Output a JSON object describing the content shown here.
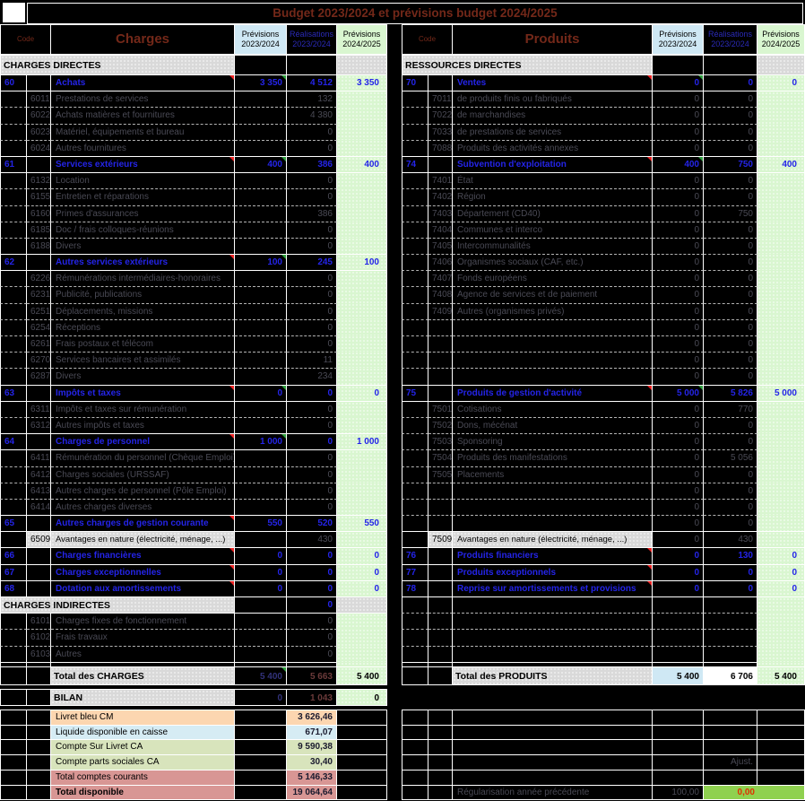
{
  "title": "Budget 2023/2024 et prévisions budget 2024/2025",
  "header": {
    "code": "Code",
    "charges": "Charges",
    "produits": "Produits",
    "prev_2324": "Prévisions\n2023/2024",
    "real_2324": "Réalisations\n2023/2024",
    "prev_2425": "Prévisions\n2024/2025"
  },
  "colors": {
    "accent_blue": "#2424e8",
    "header_red": "#732819",
    "green_col": "#d9f6d0",
    "blue_col": "#cfe8f4",
    "gray_band": "#d9d9d9",
    "verif_green": "#8fd14f",
    "verif_red": "#e03000",
    "peach": "#fcd6b0",
    "lightblue": "#d6ecf4",
    "olive": "#d8e4bc",
    "salmon": "#d89694"
  },
  "body": {
    "left": [
      {
        "t": "band",
        "l": "CHARGES DIRECTES",
        "v": [
          "",
          "",
          ""
        ]
      },
      {
        "t": "main",
        "c": "60",
        "l": "Achats",
        "v": [
          "3 350",
          "4 512",
          "3 350"
        ],
        "m": "rg"
      },
      {
        "t": "sub",
        "c": "6011",
        "l": "Prestations de services",
        "v": [
          "",
          "132"
        ]
      },
      {
        "t": "sub",
        "c": "6022",
        "l": "Achats matières et fournitures",
        "v": [
          "",
          "4 380"
        ]
      },
      {
        "t": "sub",
        "c": "6023",
        "l": "Matériel, équipements et bureau",
        "v": [
          "",
          "0"
        ]
      },
      {
        "t": "sub",
        "c": "6024",
        "l": "Autres fournitures",
        "v": [
          "",
          "0"
        ]
      },
      {
        "t": "main",
        "c": "61",
        "l": "Services extérieurs",
        "v": [
          "400",
          "386",
          "400"
        ],
        "m": "rg"
      },
      {
        "t": "sub",
        "c": "6132",
        "l": "Location",
        "v": [
          "",
          "0"
        ]
      },
      {
        "t": "sub",
        "c": "6155",
        "l": "Entretien et réparations",
        "v": [
          "",
          "0"
        ]
      },
      {
        "t": "sub",
        "c": "6160",
        "l": "Primes d'assurances",
        "v": [
          "",
          "386"
        ]
      },
      {
        "t": "sub",
        "c": "6185",
        "l": "Doc / frais colloques-réunions",
        "v": [
          "",
          "0"
        ]
      },
      {
        "t": "sub",
        "c": "6188",
        "l": "Divers",
        "v": [
          "",
          "0"
        ]
      },
      {
        "t": "main",
        "c": "62",
        "l": "Autres services extérieurs",
        "v": [
          "100",
          "245",
          "100"
        ],
        "m": "rg"
      },
      {
        "t": "sub",
        "c": "6226",
        "l": "Rémunérations intermédiaires-honoraires",
        "v": [
          "",
          "0"
        ]
      },
      {
        "t": "sub",
        "c": "6231",
        "l": "Publicité, publications",
        "v": [
          "",
          "0"
        ]
      },
      {
        "t": "sub",
        "c": "6251",
        "l": "Déplacements, missions",
        "v": [
          "",
          "0"
        ]
      },
      {
        "t": "sub",
        "c": "6254",
        "l": "Réceptions",
        "v": [
          "",
          "0"
        ]
      },
      {
        "t": "sub",
        "c": "6261",
        "l": "Frais postaux et télécom",
        "v": [
          "",
          "0"
        ]
      },
      {
        "t": "sub",
        "c": "6270",
        "l": "Services bancaires et assimilés",
        "v": [
          "",
          "11"
        ]
      },
      {
        "t": "sub",
        "c": "6287",
        "l": "Divers",
        "v": [
          "",
          "234"
        ]
      },
      {
        "t": "main",
        "c": "63",
        "l": "Impôts et taxes",
        "v": [
          "0",
          "0",
          "0"
        ],
        "m": "rg"
      },
      {
        "t": "sub",
        "c": "6311",
        "l": "Impôts et taxes sur rémunération",
        "v": [
          "",
          "0"
        ]
      },
      {
        "t": "sub",
        "c": "6312",
        "l": "Autres impôts et taxes",
        "v": [
          "",
          "0"
        ]
      },
      {
        "t": "main",
        "c": "64",
        "l": "Charges de personnel",
        "v": [
          "1 000",
          "0",
          "1 000"
        ],
        "m": "rg"
      },
      {
        "t": "sub",
        "c": "6411",
        "l": "Rémunération du personnel (Chèque Emploi)",
        "v": [
          "",
          "0"
        ]
      },
      {
        "t": "sub",
        "c": "6412",
        "l": "Charges sociales (URSSAF)",
        "v": [
          "",
          "0"
        ]
      },
      {
        "t": "sub",
        "c": "6413",
        "l": "Autres charges de personnel (Pôle Emploi)",
        "v": [
          "",
          "0"
        ]
      },
      {
        "t": "sub",
        "c": "6414",
        "l": "Autres charges diverses",
        "v": [
          "",
          "0"
        ]
      },
      {
        "t": "main",
        "c": "65",
        "l": "Autres charges de gestion courante",
        "v": [
          "550",
          "520",
          "550"
        ],
        "m": "r"
      },
      {
        "t": "gray",
        "c": "6509",
        "l": "Avantages en nature (électricité, ménage, ...)",
        "v": [
          "",
          "430"
        ]
      },
      {
        "t": "main",
        "c": "66",
        "l": "Charges financières",
        "v": [
          "0",
          "0",
          "0"
        ],
        "m": "r"
      },
      {
        "t": "main",
        "c": "67",
        "l": "Charges exceptionnelles",
        "v": [
          "0",
          "0",
          "0"
        ],
        "m": "r"
      },
      {
        "t": "main",
        "c": "68",
        "l": "Dotation aux amortissements",
        "v": [
          "0",
          "0",
          "0"
        ],
        "m": "r"
      },
      {
        "t": "band",
        "l": "CHARGES INDIRECTES",
        "v": [
          "",
          "0",
          ""
        ]
      },
      {
        "t": "sub",
        "c": "6101",
        "l": "Charges fixes de fonctionnement",
        "v": [
          "",
          "0"
        ]
      },
      {
        "t": "sub",
        "c": "6102",
        "l": "Frais travaux",
        "v": [
          "",
          "0"
        ]
      },
      {
        "t": "sub",
        "c": "6103",
        "l": "Autres",
        "v": [
          "",
          "0"
        ]
      }
    ],
    "right": [
      {
        "t": "band",
        "l": "RESSOURCES DIRECTES",
        "v": [
          "",
          "",
          ""
        ]
      },
      {
        "t": "main",
        "c": "70",
        "l": "Ventes",
        "v": [
          "0",
          "0",
          "0"
        ],
        "m": "rg"
      },
      {
        "t": "sub",
        "c": "7011",
        "l": "de produits finis ou fabriqués",
        "v": [
          "0",
          "0"
        ]
      },
      {
        "t": "sub",
        "c": "7022",
        "l": "de marchandises",
        "v": [
          "0",
          "0"
        ]
      },
      {
        "t": "sub",
        "c": "7033",
        "l": "de prestations de services",
        "v": [
          "0",
          "0"
        ]
      },
      {
        "t": "sub",
        "c": "7088",
        "l": "Produits des activités annexes",
        "v": [
          "0",
          "0"
        ]
      },
      {
        "t": "main",
        "c": "74",
        "l": "Subvention d'exploitation",
        "v": [
          "400",
          "750",
          "400"
        ],
        "m": "rg"
      },
      {
        "t": "sub",
        "c": "7401",
        "l": "État",
        "v": [
          "0",
          "0"
        ]
      },
      {
        "t": "sub",
        "c": "7402",
        "l": "Région",
        "v": [
          "0",
          "0"
        ]
      },
      {
        "t": "sub",
        "c": "7403",
        "l": "Département (CD40)",
        "v": [
          "0",
          "750"
        ]
      },
      {
        "t": "sub",
        "c": "7404",
        "l": "Communes et interco",
        "v": [
          "0",
          "0"
        ]
      },
      {
        "t": "sub",
        "c": "7405",
        "l": "Intercommunalités",
        "v": [
          "0",
          "0"
        ]
      },
      {
        "t": "sub",
        "c": "7406",
        "l": "Organismes sociaux (CAF, etc.)",
        "v": [
          "0",
          "0"
        ]
      },
      {
        "t": "sub",
        "c": "7407",
        "l": "Fonds européens",
        "v": [
          "0",
          "0"
        ]
      },
      {
        "t": "sub",
        "c": "7408",
        "l": "Agence de services et de paiement",
        "v": [
          "0",
          "0"
        ]
      },
      {
        "t": "sub",
        "c": "7409",
        "l": "Autres (organismes privés)",
        "v": [
          "0",
          "0"
        ]
      },
      {
        "t": "sub",
        "c": "",
        "l": "",
        "v": [
          "0",
          "0"
        ]
      },
      {
        "t": "sub",
        "c": "",
        "l": "",
        "v": [
          "0",
          "0"
        ]
      },
      {
        "t": "sub",
        "c": "",
        "l": "",
        "v": [
          "0",
          "0"
        ]
      },
      {
        "t": "sub",
        "c": "",
        "l": "",
        "v": [
          "0",
          "0"
        ]
      },
      {
        "t": "main",
        "c": "75",
        "l": "Produits de gestion d'activité",
        "v": [
          "5 000",
          "5 826",
          "5 000"
        ],
        "m": "rg"
      },
      {
        "t": "sub",
        "c": "7501",
        "l": "Cotisations",
        "v": [
          "0",
          "770"
        ]
      },
      {
        "t": "sub",
        "c": "7502",
        "l": "Dons, mécénat",
        "v": [
          "0",
          "0"
        ]
      },
      {
        "t": "sub",
        "c": "7503",
        "l": "Sponsoring",
        "v": [
          "0",
          "0"
        ]
      },
      {
        "t": "sub",
        "c": "7504",
        "l": "Produits des manifestations",
        "v": [
          "0",
          "5 056"
        ]
      },
      {
        "t": "sub",
        "c": "7505",
        "l": "Placements",
        "v": [
          "0",
          "0"
        ]
      },
      {
        "t": "sub",
        "c": "",
        "l": "",
        "v": [
          "0",
          "0"
        ]
      },
      {
        "t": "sub",
        "c": "",
        "l": "",
        "v": [
          "0",
          "0"
        ]
      },
      {
        "t": "sub",
        "c": "",
        "l": "",
        "v": [
          "0",
          "0"
        ]
      },
      {
        "t": "gray",
        "c": "7509",
        "l": "Avantages en nature (électricité, ménage, ...)",
        "v": [
          "0",
          "430"
        ]
      },
      {
        "t": "main",
        "c": "76",
        "l": "Produits financiers",
        "v": [
          "0",
          "130",
          "0"
        ],
        "m": "r"
      },
      {
        "t": "main",
        "c": "77",
        "l": "Produits exceptionnels",
        "v": [
          "0",
          "0",
          "0"
        ],
        "m": "r"
      },
      {
        "t": "main",
        "c": "78",
        "l": "Reprise sur amortissements et provisions",
        "v": [
          "0",
          "0",
          "0"
        ],
        "m": "r"
      },
      {
        "t": "empty"
      },
      {
        "t": "empty"
      },
      {
        "t": "empty"
      },
      {
        "t": "empty"
      }
    ]
  },
  "bottom": {
    "total_charges": {
      "label": "Total des CHARGES",
      "prev": "5 400",
      "real": "5 663",
      "next": "5 400"
    },
    "bilan": {
      "label": "BILAN",
      "prev": "0",
      "real": "1 043",
      "next": "0"
    },
    "accounts": [
      {
        "label": "Livret bleu CM",
        "value": "3 626,46",
        "color": "peach",
        "bold": false
      },
      {
        "label": "Liquide disponible en caisse",
        "value": "671,07",
        "color": "lightblue",
        "bold": false
      },
      {
        "label": "Compte Sur Livret CA",
        "value": "9 590,38",
        "color": "olive",
        "bold": false
      },
      {
        "label": "Compte parts sociales CA",
        "value": "30,40",
        "color": "olive",
        "bold": false
      },
      {
        "label": "Total comptes courants",
        "value": "5 146,33",
        "color": "salmon",
        "bold": false
      },
      {
        "label": "Total disponible",
        "value": "19 064,64",
        "color": "salmon",
        "bold": true
      }
    ],
    "total_produits": {
      "label": "Total des PRODUITS",
      "prev": "5 400",
      "real": "6 706",
      "next": "5 400"
    },
    "ajust_label": "Ajust.",
    "verification": {
      "label": "Régularisation année précédente",
      "value": "100,00",
      "result": "0,00"
    }
  }
}
